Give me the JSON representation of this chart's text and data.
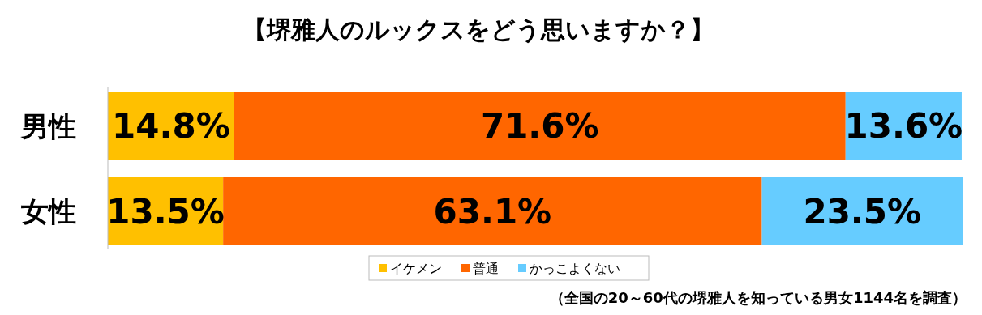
{
  "chart_data": {
    "type": "bar",
    "orientation": "horizontal",
    "stacked": true,
    "title": "【堺雅人のルックスをどう思いますか？】",
    "categories": [
      "男性",
      "女性"
    ],
    "series": [
      {
        "name": "イケメン",
        "color": "#ffc000",
        "values": [
          14.8,
          13.5
        ],
        "value_labels": [
          "14.8%",
          "13.5%"
        ]
      },
      {
        "name": "普通",
        "color": "#ff6600",
        "values": [
          71.6,
          63.1
        ],
        "value_labels": [
          "71.6%",
          "63.1%"
        ]
      },
      {
        "name": "かっこよくない",
        "color": "#66ccff",
        "values": [
          13.6,
          23.5
        ],
        "value_labels": [
          "13.6%",
          "23.5%"
        ]
      }
    ],
    "legend": "bottom",
    "tick_labels": "y",
    "annotations": [
      "（全国の20～60代の堺雅人を知っている男女1144名を調査）"
    ]
  }
}
